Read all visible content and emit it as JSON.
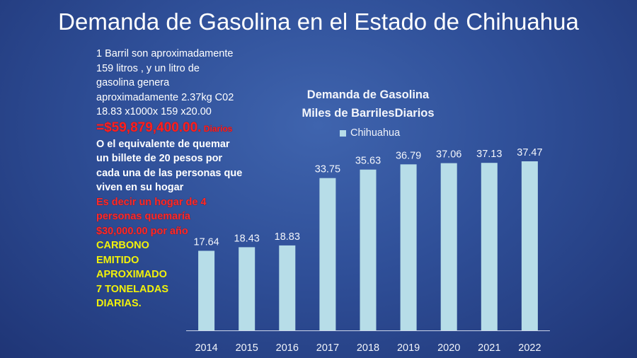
{
  "slide": {
    "title": "Demanda de Gasolina en el Estado de Chihuahua"
  },
  "notes": {
    "line1": "1 Barril son aproximadamente",
    "line2": "159 litros ,  y un litro de",
    "line3": "gasolina genera",
    "line4": "aproximadamente  2.37kg C02",
    "line5": "18.83 x1000x 159 x20.00",
    "big_amount": "=$59,879,400.00.",
    "big_suffix": " Diarios",
    "bold1": "O el equivalente de quemar",
    "bold2": "un billete de 20 pesos por",
    "bold3": "cada una de las personas que",
    "bold4": "viven en su hogar",
    "red1": "Es decir un hogar de 4",
    "red2": "personas quemaría",
    "red3": "$30,000.00 por año",
    "yellow1": "CARBONO",
    "yellow2": "EMITIDO",
    "yellow3": "APROXIMADO",
    "yellow4": "7 TONELADAS",
    "yellow5": "DIARIAS."
  },
  "colors": {
    "bar": "#b7dde8",
    "axis": "#c9d3e8"
  },
  "chart_data": {
    "type": "bar",
    "title": "Demanda de Gasolina",
    "subtitle": "Miles de BarrilesDiarios",
    "legend_position": "top",
    "categories": [
      "2014",
      "2015",
      "2016",
      "2017",
      "2018",
      "2019",
      "2020",
      "2021",
      "2022"
    ],
    "series": [
      {
        "name": "Chihuahua",
        "values": [
          17.64,
          18.43,
          18.83,
          33.75,
          35.63,
          36.79,
          37.06,
          37.13,
          37.47
        ]
      }
    ],
    "data_labels": [
      "17.64",
      "18.43",
      "18.83",
      "33.75",
      "35.63",
      "36.79",
      "37.06",
      "37.13",
      "37.47"
    ],
    "ylim": [
      0,
      37.47
    ],
    "grid": false
  }
}
